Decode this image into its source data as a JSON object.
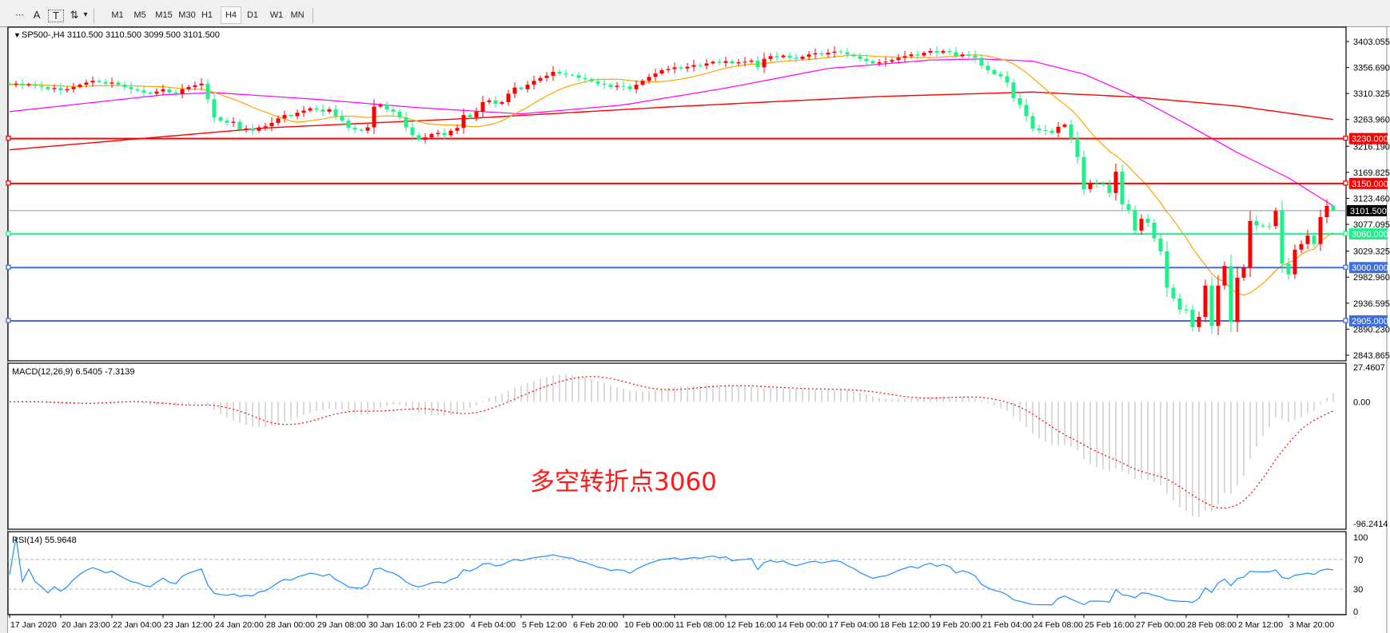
{
  "toolbar": {
    "tools": [
      {
        "name": "period-separator-icon",
        "glyph": "⋯"
      },
      {
        "name": "text-tool-icon",
        "glyph": "A"
      },
      {
        "name": "text-label-icon",
        "glyph": "T"
      },
      {
        "name": "arrows-icon",
        "glyph": "⇅"
      }
    ],
    "dropdown_glyph": "▾",
    "timeframes": [
      "M1",
      "M5",
      "M15",
      "M30",
      "H1",
      "H4",
      "D1",
      "W1",
      "MN"
    ],
    "active_timeframe": "H4"
  },
  "chart": {
    "header_arrow": "▼",
    "header": "SP500-,H4  3110.500 3110.500 3099.500 3101.500",
    "annotation": "多空转折点3060",
    "annotation_color": "#ff1a1a",
    "current_price_label": "3101.500",
    "levels": [
      {
        "price": 3230,
        "label": "3230.000",
        "color": "#ff0000"
      },
      {
        "price": 3150,
        "label": "3150.000",
        "color": "#ff0000"
      },
      {
        "price": 3060,
        "label": "3060.000",
        "color": "#1ef08a"
      },
      {
        "price": 3000,
        "label": "3000.000",
        "color": "#3f6fdc"
      },
      {
        "price": 2905,
        "label": "2905.000",
        "color": "#3f6fdc"
      }
    ],
    "macd": {
      "label": "MACD(12,26,9) 6.5405 -7.3139",
      "max_label": "27.4607",
      "zero_label": "0.00",
      "min_label": "-96.2414"
    },
    "rsi": {
      "label": "RSI(14) 55.9648",
      "level_labels": [
        "100",
        "70",
        "30",
        "0"
      ]
    }
  },
  "chart_data": {
    "type": "candlestick",
    "symbol": "SP500-",
    "timeframe": "H4",
    "last_bar": {
      "open": 3110.5,
      "high": 3110.5,
      "low": 3099.5,
      "close": 3101.5
    },
    "up_color": "#ff0000",
    "down_color": "#1ef08a",
    "ylim": [
      2843.865,
      3403.055
    ],
    "y_tick_labels": [
      "3403.055",
      "3356.690",
      "3310.325",
      "3263.960",
      "3216.190",
      "3169.825",
      "3123.460",
      "3077.095",
      "3029.325",
      "2982.960",
      "2936.595",
      "2890.230",
      "2843.865"
    ],
    "x_tick_labels": [
      "17 Jan 2020",
      "20 Jan 23:00",
      "22 Jan 04:00",
      "23 Jan 12:00",
      "24 Jan 20:00",
      "28 Jan 00:00",
      "29 Jan 08:00",
      "30 Jan 16:00",
      "2 Feb 23:00",
      "4 Feb 04:00",
      "5 Feb 12:00",
      "6 Feb 20:00",
      "10 Feb 00:00",
      "11 Feb 08:00",
      "12 Feb 16:00",
      "14 Feb 00:00",
      "17 Feb 04:00",
      "18 Feb 12:00",
      "19 Feb 20:00",
      "21 Feb 04:00",
      "24 Feb 08:00",
      "25 Feb 16:00",
      "27 Feb 00:00",
      "28 Feb 08:00",
      "2 Mar 12:00",
      "3 Mar 20:00"
    ],
    "closes": [
      3326,
      3328,
      3325,
      3327,
      3324,
      3322,
      3318,
      3320,
      3316,
      3318,
      3322,
      3326,
      3330,
      3333,
      3331,
      3328,
      3330,
      3326,
      3322,
      3318,
      3316,
      3312,
      3310,
      3314,
      3318,
      3312,
      3310,
      3318,
      3322,
      3325,
      3328,
      3300,
      3268,
      3262,
      3258,
      3260,
      3246,
      3248,
      3244,
      3250,
      3252,
      3258,
      3266,
      3272,
      3270,
      3276,
      3280,
      3284,
      3282,
      3278,
      3282,
      3270,
      3262,
      3249,
      3246,
      3244,
      3250,
      3287,
      3290,
      3282,
      3278,
      3268,
      3250,
      3236,
      3228,
      3232,
      3238,
      3240,
      3236,
      3244,
      3249,
      3272,
      3268,
      3278,
      3295,
      3298,
      3292,
      3295,
      3310,
      3321,
      3318,
      3326,
      3333,
      3338,
      3342,
      3349,
      3346,
      3344,
      3343,
      3338,
      3336,
      3332,
      3328,
      3326,
      3322,
      3324,
      3323,
      3318,
      3326,
      3333,
      3340,
      3346,
      3352,
      3354,
      3357,
      3355,
      3358,
      3361,
      3360,
      3364,
      3367,
      3365,
      3368,
      3364,
      3366,
      3367,
      3369,
      3357,
      3372,
      3377,
      3375,
      3378,
      3374,
      3372,
      3376,
      3380,
      3382,
      3380,
      3383,
      3385,
      3384,
      3380,
      3377,
      3372,
      3368,
      3364,
      3366,
      3367,
      3370,
      3374,
      3377,
      3380,
      3378,
      3383,
      3386,
      3383,
      3386,
      3384,
      3377,
      3380,
      3378,
      3374,
      3360,
      3352,
      3345,
      3341,
      3330,
      3302,
      3290,
      3270,
      3248,
      3245,
      3244,
      3240,
      3251,
      3255,
      3230,
      3197,
      3140,
      3150,
      3150,
      3148,
      3133,
      3171,
      3113,
      3103,
      3066,
      3087,
      3080,
      3052,
      3029,
      2964,
      2945,
      2925,
      2925,
      2894,
      2912,
      2968,
      2896,
      2968,
      3003,
      2903,
      2982,
      3000,
      3083,
      3075,
      3074,
      3074,
      3101,
      3007,
      2988,
      3032,
      3042,
      3057,
      3042,
      3090,
      3110,
      3101.5
    ],
    "ma_fast": {
      "color": "#ffa500"
    },
    "ma_mid": {
      "color": "#ff00ff",
      "bars": [
        0,
        24,
        32,
        48,
        64,
        80,
        96,
        112,
        128,
        144,
        152,
        160,
        168,
        176,
        184,
        192,
        200,
        207
      ],
      "values": [
        3278,
        3308,
        3312,
        3300,
        3285,
        3274,
        3290,
        3320,
        3355,
        3370,
        3372,
        3368,
        3345,
        3305,
        3256,
        3205,
        3160,
        3110
      ]
    },
    "ma_slow": {
      "color": "#ff0000",
      "bars": [
        0,
        40,
        72,
        104,
        136,
        160,
        176,
        192,
        207
      ],
      "values": [
        3210,
        3249,
        3266,
        3287,
        3305,
        3313,
        3304,
        3288,
        3264
      ]
    },
    "current_price": 3101.5,
    "macd_ylim": [
      -96.2414,
      27.4607
    ],
    "rsi_levels": [
      70,
      30
    ]
  }
}
